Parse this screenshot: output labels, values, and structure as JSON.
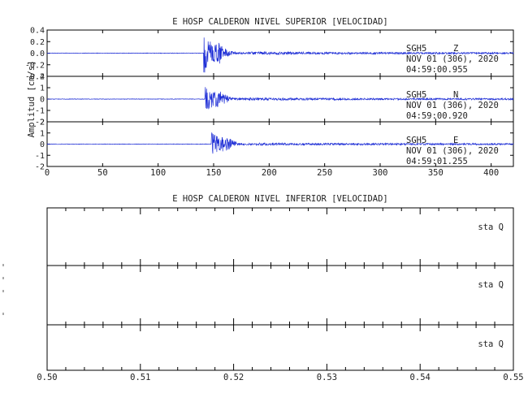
{
  "chart_data": [
    {
      "type": "line",
      "title": "E HOSP CALDERON NIVEL SUPERIOR [VELOCIDAD]",
      "ylabel": "Amplitud [cm/s]",
      "xlim": [
        0,
        420
      ],
      "xticks": [
        "0",
        "50",
        "100",
        "150",
        "200",
        "250",
        "300",
        "350",
        "400"
      ],
      "color": "#1f2fd6",
      "traces": [
        {
          "station": "SGH5",
          "component": "Z",
          "date": "NOV 01 (306), 2020",
          "time": "04:59:00.955",
          "ylim": [
            -0.4,
            0.4
          ],
          "yticks": [
            "0.4",
            "0.2",
            "0.0",
            "-0.2",
            "-0.4"
          ],
          "onset": 141,
          "peak": 0.42
        },
        {
          "station": "SGH5",
          "component": "N",
          "date": "NOV 01 (306), 2020",
          "time": "04:59:00.920",
          "ylim": [
            -2,
            2
          ],
          "yticks": [
            "2",
            "1",
            "0",
            "-1",
            "-2"
          ],
          "onset": 142,
          "peak": 1.5
        },
        {
          "station": "SGH5",
          "component": "E",
          "date": "NOV 01 (306), 2020",
          "time": "04:59:01.255",
          "ylim": [
            -2,
            2
          ],
          "yticks": [
            "2",
            "1",
            "0",
            "-1",
            "-2"
          ],
          "onset": 148,
          "peak": 1.4
        }
      ]
    },
    {
      "type": "line",
      "title": "E HOSP CALDERON NIVEL INFERIOR [VELOCIDAD]",
      "xlim": [
        0.5,
        0.55
      ],
      "xticks": [
        "0.50",
        "0.51",
        "0.52",
        "0.53",
        "0.54",
        "0.55"
      ],
      "traces": [
        {
          "label": "sta  Q"
        },
        {
          "label": "sta  Q"
        },
        {
          "label": "sta  Q"
        }
      ]
    }
  ]
}
